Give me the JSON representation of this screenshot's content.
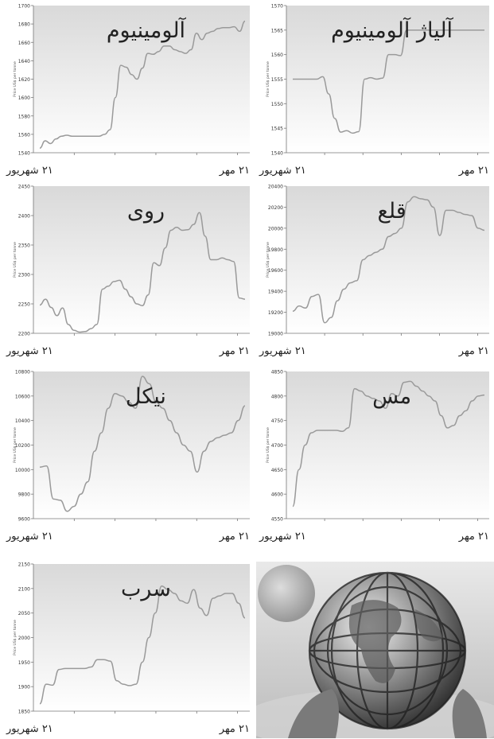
{
  "chart_data": [
    {
      "type": "line",
      "title": "آلومینیوم",
      "ylabel": "Price US$ per tonne",
      "ylim": [
        1540,
        1700
      ],
      "yticks": [
        1540,
        1560,
        1580,
        1600,
        1620,
        1640,
        1660,
        1680,
        1700
      ],
      "x_start_label": "۲۱ شهریور",
      "x_end_label": "۲۱ مهر",
      "values": [
        1545,
        1553,
        1550,
        1555,
        1558,
        1559,
        1558,
        1558,
        1558,
        1558,
        1558,
        1558,
        1560,
        1565,
        1600,
        1635,
        1633,
        1625,
        1620,
        1632,
        1648,
        1647,
        1650,
        1656,
        1656,
        1652,
        1650,
        1648,
        1652,
        1670,
        1663,
        1670,
        1672,
        1675,
        1676,
        1676,
        1677,
        1672,
        1683
      ]
    },
    {
      "type": "line",
      "title": "آلیاژ آلومینیوم",
      "ylabel": "Price US$ per tonne",
      "ylim": [
        1540,
        1570
      ],
      "yticks": [
        1540,
        1545,
        1550,
        1555,
        1560,
        1565,
        1570
      ],
      "x_start_label": "۲۱ شهریور",
      "x_end_label": "۲۱ مهر",
      "values": [
        1555,
        1555,
        1555,
        1555,
        1555,
        1555.5,
        1552,
        1547,
        1544.2,
        1544.5,
        1544,
        1544.3,
        1555,
        1555.3,
        1555,
        1555.2,
        1560,
        1560,
        1559.8,
        1565,
        1565,
        1565,
        1565,
        1565,
        1565,
        1565,
        1565,
        1565,
        1565,
        1565,
        1565,
        1565,
        1565
      ]
    },
    {
      "type": "line",
      "title": "روی",
      "ylabel": "Price US$ per tonne",
      "ylim": [
        2200,
        2450
      ],
      "yticks": [
        2200,
        2250,
        2300,
        2350,
        2400,
        2450
      ],
      "x_start_label": "۲۱ شهریور",
      "x_end_label": "۲۱ مهر",
      "values": [
        2248,
        2258,
        2244,
        2230,
        2243,
        2215,
        2205,
        2202,
        2203,
        2208,
        2215,
        2275,
        2280,
        2288,
        2290,
        2275,
        2262,
        2250,
        2247,
        2265,
        2320,
        2315,
        2345,
        2375,
        2380,
        2375,
        2376,
        2385,
        2405,
        2365,
        2325,
        2325,
        2328,
        2325,
        2322,
        2260,
        2258
      ]
    },
    {
      "type": "line",
      "title": "قلع",
      "ylabel": "Price US$ per tonne",
      "ylim": [
        19000,
        20400
      ],
      "yticks": [
        19000,
        19200,
        19400,
        19600,
        19800,
        20000,
        20200,
        20400
      ],
      "x_start_label": "۲۱ شهریور",
      "x_end_label": "۲۱ مهر",
      "values": [
        19210,
        19260,
        19240,
        19350,
        19370,
        19100,
        19150,
        19310,
        19420,
        19480,
        19500,
        19700,
        19740,
        19770,
        19800,
        19920,
        19950,
        20000,
        20250,
        20300,
        20280,
        20270,
        20200,
        19930,
        20170,
        20170,
        20150,
        20130,
        20120,
        20000,
        19980
      ]
    },
    {
      "type": "line",
      "title": "نیکل",
      "ylabel": "Price US$ per tonne",
      "ylim": [
        9600,
        10800
      ],
      "yticks": [
        9600,
        9800,
        10000,
        10200,
        10400,
        10600,
        10800
      ],
      "x_start_label": "۲۱ شهریور",
      "x_end_label": "۲۱ مهر",
      "values": [
        10020,
        10030,
        9760,
        9750,
        9660,
        9700,
        9800,
        9900,
        10150,
        10300,
        10500,
        10620,
        10600,
        10550,
        10500,
        10760,
        10700,
        10550,
        10500,
        10400,
        10300,
        10200,
        10150,
        9980,
        10150,
        10230,
        10260,
        10280,
        10300,
        10400,
        10520
      ]
    },
    {
      "type": "line",
      "title": "مس",
      "ylabel": "Price US$ per tonne",
      "ylim": [
        4550,
        4850
      ],
      "yticks": [
        4550,
        4600,
        4650,
        4700,
        4750,
        4800,
        4850
      ],
      "x_start_label": "۲۱ شهریور",
      "x_end_label": "۲۱ مهر",
      "values": [
        4575,
        4650,
        4700,
        4725,
        4730,
        4730,
        4730,
        4730,
        4728,
        4735,
        4815,
        4810,
        4800,
        4795,
        4790,
        4775,
        4805,
        4800,
        4828,
        4830,
        4820,
        4810,
        4800,
        4790,
        4760,
        4735,
        4740,
        4760,
        4770,
        4790,
        4800,
        4802
      ]
    },
    {
      "type": "line",
      "title": "سرب",
      "ylabel": "Price US$ per tonne",
      "ylim": [
        1850,
        2150
      ],
      "yticks": [
        1850,
        1900,
        1950,
        2000,
        2050,
        2100,
        2150
      ],
      "x_start_label": "۲۱ شهریور",
      "x_end_label": "۲۱ مهر",
      "values": [
        1865,
        1905,
        1903,
        1935,
        1937,
        1937,
        1937,
        1937,
        1940,
        1955,
        1955,
        1952,
        1912,
        1905,
        1902,
        1905,
        1950,
        2000,
        2050,
        2105,
        2098,
        2090,
        2075,
        2070,
        2098,
        2060,
        2045,
        2080,
        2085,
        2090,
        2090,
        2070,
        2040
      ]
    }
  ]
}
